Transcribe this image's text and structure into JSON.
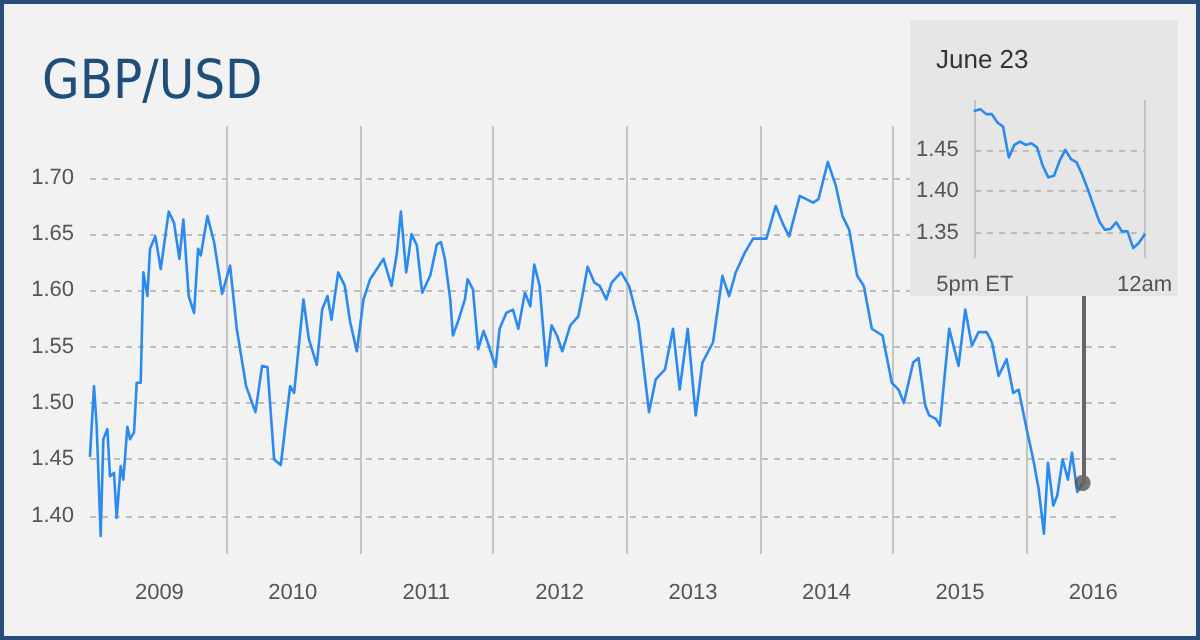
{
  "chart_data": [
    {
      "type": "line",
      "title": "GBP/USD",
      "xlim": [
        2008.98,
        2016.7
      ],
      "ylim": [
        1.366,
        1.746
      ],
      "xticks": [
        {
          "value": 2009.5,
          "label": "2009"
        },
        {
          "value": 2010,
          "label": null
        },
        {
          "value": 2010.5,
          "label": "2010"
        },
        {
          "value": 2011,
          "label": null
        },
        {
          "value": 2011.5,
          "label": "2011"
        },
        {
          "value": 2012,
          "label": null
        },
        {
          "value": 2012.5,
          "label": "2012"
        },
        {
          "value": 2013,
          "label": null
        },
        {
          "value": 2013.5,
          "label": "2013"
        },
        {
          "value": 2014,
          "label": null
        },
        {
          "value": 2014.5,
          "label": "2014"
        },
        {
          "value": 2015,
          "label": null
        },
        {
          "value": 2015.5,
          "label": "2015"
        },
        {
          "value": 2016,
          "label": null
        },
        {
          "value": 2016.5,
          "label": "2016"
        }
      ],
      "yticks": [
        {
          "value": 1.4,
          "label": "1.40"
        },
        {
          "value": 1.45,
          "label": "1.45"
        },
        {
          "value": 1.5,
          "label": "1.50"
        },
        {
          "value": 1.55,
          "label": "1.55"
        },
        {
          "value": 1.6,
          "label": "1.60"
        },
        {
          "value": 1.65,
          "label": "1.65"
        },
        {
          "value": 1.7,
          "label": "1.70"
        }
      ],
      "grid": true,
      "marker": "none",
      "line_style": "solid",
      "series": [
        {
          "color": "#2b8af0",
          "x": [
            2008.98,
            2009.01,
            2009.03,
            2009.06,
            2009.08,
            2009.11,
            2009.13,
            2009.16,
            2009.18,
            2009.21,
            2009.23,
            2009.26,
            2009.28,
            2009.31,
            2009.33,
            2009.36,
            2009.38,
            2009.41,
            2009.43,
            2009.47,
            2009.51,
            2009.57,
            2009.61,
            2009.65,
            2009.68,
            2009.72,
            2009.76,
            2009.79,
            2009.81,
            2009.86,
            2009.91,
            2009.97,
            2010.03,
            2010.08,
            2010.15,
            2010.22,
            2010.27,
            2010.31,
            2010.36,
            2010.41,
            2010.48,
            2010.51,
            2010.58,
            2010.62,
            2010.68,
            2010.72,
            2010.76,
            2010.79,
            2010.84,
            2010.89,
            2010.93,
            2010.98,
            2011.03,
            2011.08,
            2011.13,
            2011.18,
            2011.24,
            2011.28,
            2011.31,
            2011.35,
            2011.39,
            2011.43,
            2011.47,
            2011.53,
            2011.58,
            2011.61,
            2011.64,
            2011.68,
            2011.7,
            2011.74,
            2011.79,
            2011.81,
            2011.85,
            2011.89,
            2011.93,
            2011.96,
            2012.02,
            2012.05,
            2012.1,
            2012.15,
            2012.19,
            2012.24,
            2012.28,
            2012.31,
            2012.35,
            2012.4,
            2012.44,
            2012.48,
            2012.52,
            2012.58,
            2012.64,
            2012.67,
            2012.71,
            2012.76,
            2012.8,
            2012.85,
            2012.89,
            2012.96,
            2013.02,
            2013.09,
            2013.17,
            2013.22,
            2013.29,
            2013.35,
            2013.4,
            2013.46,
            2013.52,
            2013.57,
            2013.65,
            2013.72,
            2013.77,
            2013.82,
            2013.89,
            2013.95,
            2014.05,
            2014.12,
            2014.17,
            2014.22,
            2014.3,
            2014.4,
            2014.44,
            2014.51,
            2014.57,
            2014.62,
            2014.67,
            2014.73,
            2014.78,
            2014.84,
            2014.92,
            2014.99,
            2015.04,
            2015.08,
            2015.15,
            2015.19,
            2015.24,
            2015.27,
            2015.32,
            2015.35,
            2015.42,
            2015.49,
            2015.54,
            2015.59,
            2015.64,
            2015.7,
            2015.74,
            2015.79,
            2015.85,
            2015.9,
            2015.94,
            2016.0,
            2016.05,
            2016.09,
            2016.13,
            2016.16,
            2016.2,
            2016.23,
            2016.27,
            2016.31,
            2016.34,
            2016.38,
            2016.42
          ],
          "values": [
            1.453,
            1.515,
            1.48,
            1.382,
            1.468,
            1.477,
            1.435,
            1.438,
            1.398,
            1.444,
            1.432,
            1.479,
            1.468,
            1.474,
            1.518,
            1.518,
            1.616,
            1.595,
            1.637,
            1.648,
            1.619,
            1.67,
            1.66,
            1.628,
            1.663,
            1.595,
            1.58,
            1.637,
            1.631,
            1.666,
            1.643,
            1.597,
            1.622,
            1.566,
            1.515,
            1.492,
            1.533,
            1.532,
            1.45,
            1.445,
            1.515,
            1.509,
            1.592,
            1.557,
            1.534,
            1.583,
            1.595,
            1.574,
            1.616,
            1.604,
            1.572,
            1.546,
            1.592,
            1.61,
            1.619,
            1.628,
            1.604,
            1.633,
            1.67,
            1.616,
            1.65,
            1.64,
            1.598,
            1.613,
            1.641,
            1.643,
            1.628,
            1.592,
            1.56,
            1.573,
            1.592,
            1.61,
            1.601,
            1.548,
            1.564,
            1.554,
            1.532,
            1.566,
            1.58,
            1.583,
            1.566,
            1.598,
            1.586,
            1.623,
            1.604,
            1.533,
            1.569,
            1.56,
            1.546,
            1.569,
            1.577,
            1.595,
            1.621,
            1.607,
            1.604,
            1.592,
            1.607,
            1.616,
            1.604,
            1.572,
            1.492,
            1.521,
            1.53,
            1.566,
            1.512,
            1.566,
            1.489,
            1.536,
            1.554,
            1.613,
            1.595,
            1.616,
            1.634,
            1.646,
            1.646,
            1.675,
            1.66,
            1.648,
            1.684,
            1.678,
            1.681,
            1.714,
            1.693,
            1.666,
            1.654,
            1.613,
            1.604,
            1.566,
            1.56,
            1.518,
            1.512,
            1.5,
            1.536,
            1.54,
            1.498,
            1.489,
            1.486,
            1.48,
            1.566,
            1.533,
            1.583,
            1.551,
            1.563,
            1.563,
            1.554,
            1.524,
            1.539,
            1.509,
            1.512,
            1.477,
            1.45,
            1.424,
            1.384,
            1.447,
            1.409,
            1.418,
            1.45,
            1.432,
            1.456,
            1.421,
            1.429
          ]
        },
        {
          "type": "scatter",
          "color": "#555555",
          "marker": "circle",
          "x": [
            2016.42
          ],
          "values": [
            1.429
          ]
        }
      ]
    },
    {
      "type": "line",
      "title": "June 23",
      "ylim": [
        1.32,
        1.51
      ],
      "categories": [
        "5pm ET",
        null,
        null,
        null,
        null,
        null,
        null,
        null,
        null,
        null,
        null,
        null,
        null,
        null,
        null,
        null,
        null,
        null,
        null,
        null,
        null,
        null,
        null,
        null,
        null,
        null,
        null,
        null,
        null,
        null,
        "12am"
      ],
      "yticks": [
        {
          "value": 1.35,
          "label": "1.35"
        },
        {
          "value": 1.4,
          "label": "1.40"
        },
        {
          "value": 1.45,
          "label": "1.45"
        }
      ],
      "grid": true,
      "marker": "none",
      "line_style": "solid",
      "series": [
        {
          "color": "#2b8af0",
          "values": [
            1.497,
            1.499,
            1.493,
            1.493,
            1.483,
            1.478,
            1.441,
            1.456,
            1.46,
            1.456,
            1.458,
            1.453,
            1.431,
            1.417,
            1.419,
            1.437,
            1.45,
            1.439,
            1.435,
            1.42,
            1.402,
            1.383,
            1.364,
            1.354,
            1.355,
            1.363,
            1.352,
            1.352,
            1.332,
            1.338,
            1.348
          ]
        }
      ]
    }
  ]
}
